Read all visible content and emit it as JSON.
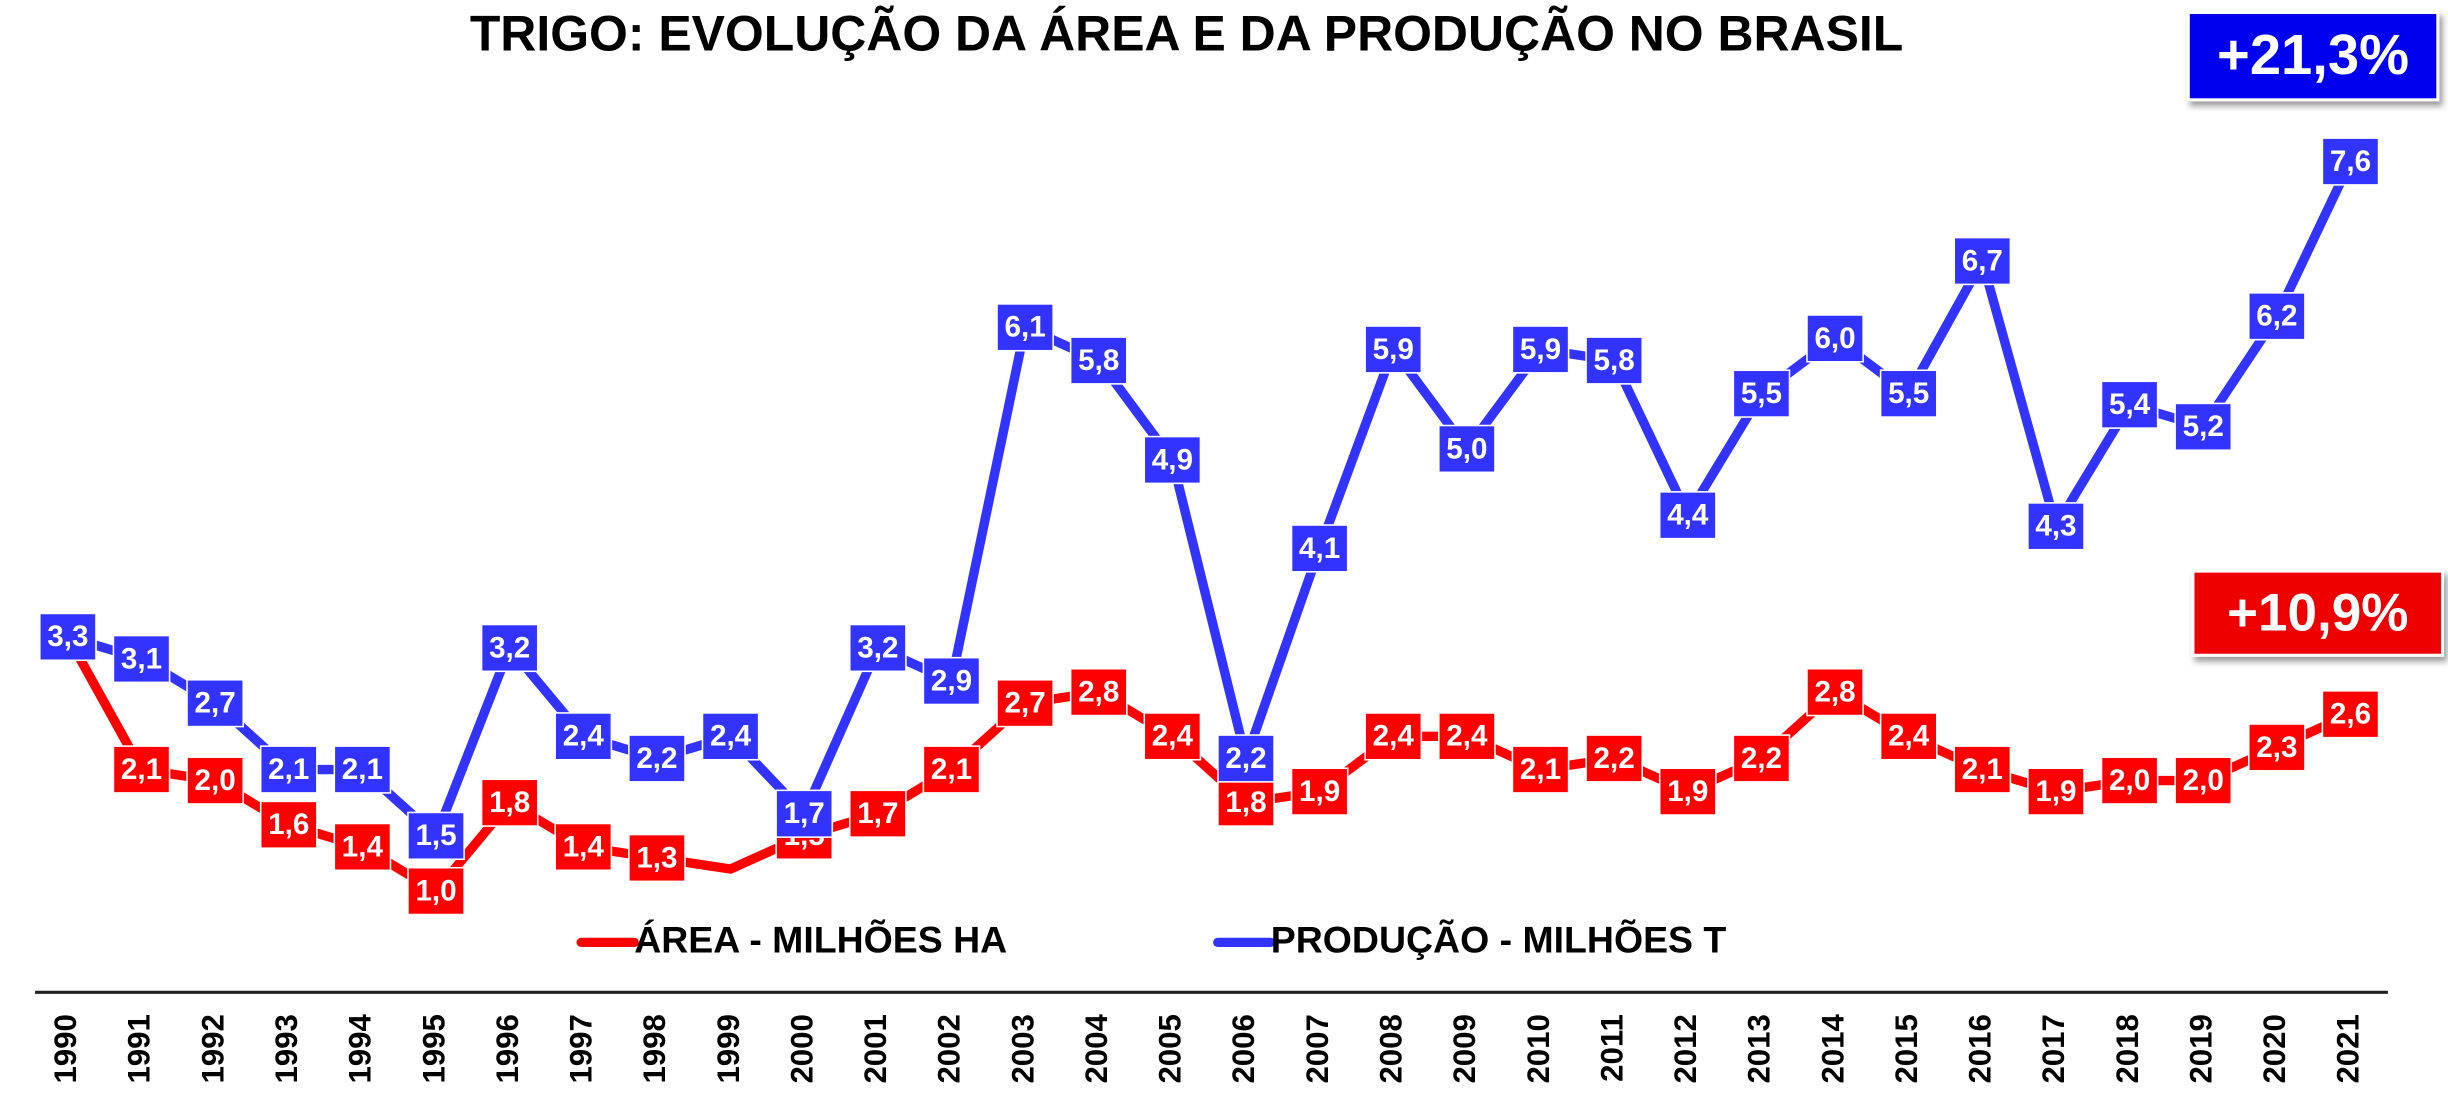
{
  "chart_data": {
    "type": "line",
    "title": "TRIGO: EVOLUÇÃO DA ÁREA E DA PRODUÇÃO NO BRASIL",
    "categories": [
      "1990",
      "1991",
      "1992",
      "1993",
      "1994",
      "1995",
      "1996",
      "1997",
      "1998",
      "1999",
      "2000",
      "2001",
      "2002",
      "2003",
      "2004",
      "2005",
      "2006",
      "2007",
      "2008",
      "2009",
      "2010",
      "2011",
      "2012",
      "2013",
      "2014",
      "2015",
      "2016",
      "2017",
      "2018",
      "2019",
      "2020",
      "2021"
    ],
    "series": [
      {
        "name": "ÁREA - MILHÕES HA",
        "color": "#ff0000",
        "values": [
          3.3,
          2.1,
          2.0,
          1.6,
          1.4,
          1.0,
          1.8,
          1.4,
          1.3,
          1.2,
          1.5,
          1.7,
          2.1,
          2.7,
          2.8,
          2.4,
          1.8,
          1.9,
          2.4,
          2.4,
          2.1,
          2.2,
          1.9,
          2.2,
          2.8,
          2.4,
          2.1,
          1.9,
          2.0,
          2.0,
          2.3,
          2.6
        ],
        "value_labels": [
          "3,3",
          "2,1",
          "2,0",
          "1,6",
          "1,4",
          "1,0",
          "1,8",
          "1,4",
          "1,3",
          null,
          "1,5",
          "1,7",
          "2,1",
          "2,7",
          "2,8",
          "2,4",
          "1,8",
          "1,9",
          "2,4",
          "2,4",
          "2,1",
          "2,2",
          "1,9",
          "2,2",
          "2,8",
          "2,4",
          "2,1",
          "1,9",
          "2,0",
          "2,0",
          "2,3",
          "2,6"
        ]
      },
      {
        "name": "PRODUÇÃO - MILHÕES T",
        "color": "#3333ff",
        "values": [
          3.3,
          3.1,
          2.7,
          2.1,
          2.1,
          1.5,
          3.2,
          2.4,
          2.2,
          2.4,
          1.7,
          3.2,
          2.9,
          6.1,
          5.8,
          4.9,
          2.2,
          4.1,
          5.9,
          5.0,
          5.9,
          5.8,
          4.4,
          5.5,
          6.0,
          5.5,
          6.7,
          4.3,
          5.4,
          5.2,
          6.2,
          7.6
        ],
        "value_labels": [
          "3,3",
          "3,1",
          "2,7",
          "2,1",
          "2,1",
          "1,5",
          "3,2",
          "2,4",
          "2,2",
          "2,4",
          "1,7",
          "3,2",
          "2,9",
          "6,1",
          "5,8",
          "4,9",
          "2,2",
          "4,1",
          "5,9",
          "5,0",
          "5,9",
          "5,8",
          "4,4",
          "5,5",
          "6,0",
          "5,5",
          "6,7",
          "4,3",
          "5,4",
          "5,2",
          "6,2",
          "7,6"
        ]
      }
    ],
    "annotations": [
      {
        "text": "+21,3%",
        "color": "#0000ee"
      },
      {
        "text": "+10,9%",
        "color": "#ee0000"
      }
    ],
    "ylim": [
      0,
      8.2
    ],
    "legend": "bottom"
  }
}
